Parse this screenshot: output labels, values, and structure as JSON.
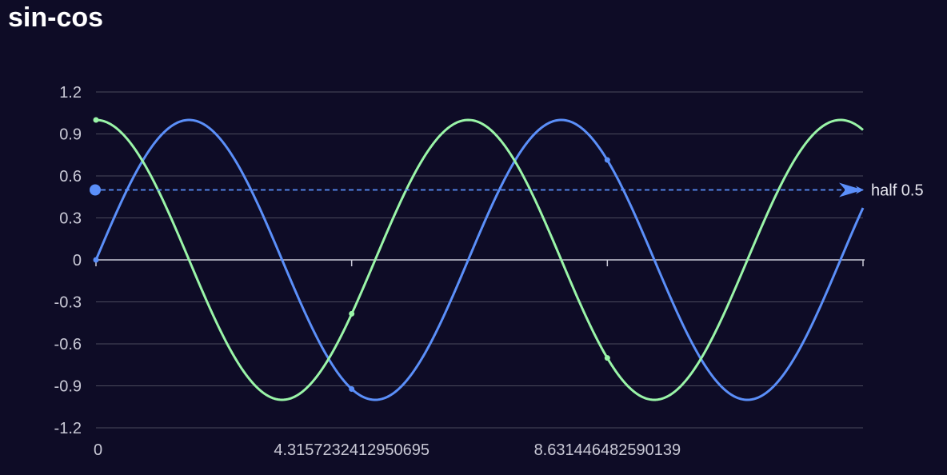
{
  "chart_data": {
    "type": "line",
    "title": "sin-cos",
    "xlabel": "",
    "ylabel": "",
    "xlim": [
      0,
      12.947
    ],
    "ylim": [
      -1.2,
      1.2
    ],
    "yticks": [
      "1.2",
      "0.9",
      "0.6",
      "0.3",
      "0",
      "-0.3",
      "-0.6",
      "-0.9",
      "-1.2"
    ],
    "xticks": [
      {
        "value": 0,
        "label": "0"
      },
      {
        "value": 4.3157232412950695,
        "label": "4.3157232412950695"
      },
      {
        "value": 8.631446482590139,
        "label": "8.631446482590139"
      }
    ],
    "grid": true,
    "colors": {
      "background": "#0e0c26",
      "grid": "#4a4a5c",
      "axis": "#c9c9d6",
      "sin": "#5b8ff9",
      "cos": "#9af5a8",
      "markline": "#5b8ff9"
    },
    "series": [
      {
        "color": "#5b8ff9",
        "function": "sin",
        "x": [
          0,
          0.5,
          1.0,
          1.571,
          2.0,
          2.5,
          3.0,
          3.142,
          3.5,
          4.0,
          4.316,
          4.712,
          5.0,
          5.5,
          6.0,
          6.283,
          6.5,
          7.0,
          7.5,
          7.854,
          8.0,
          8.5,
          8.631,
          9.0,
          9.425,
          9.5,
          10.0,
          10.5,
          10.996,
          11.0,
          11.5,
          12.0,
          12.5,
          12.566,
          12.947
        ],
        "values": [
          0,
          0.479,
          0.841,
          1.0,
          0.909,
          0.598,
          0.141,
          0.0,
          -0.351,
          -0.757,
          -0.923,
          -1.0,
          -0.959,
          -0.706,
          -0.279,
          0.0,
          0.215,
          0.657,
          0.938,
          1.0,
          0.989,
          0.798,
          0.714,
          0.412,
          0.0,
          -0.075,
          -0.544,
          -0.88,
          -1.0,
          -1.0,
          -0.875,
          -0.537,
          -0.066,
          0.0,
          0.359
        ],
        "markers": [
          {
            "x": 0,
            "y": 0
          },
          {
            "x": 4.3157232412950695,
            "y": -0.923
          },
          {
            "x": 8.631446482590139,
            "y": 0.714
          }
        ]
      },
      {
        "color": "#9af5a8",
        "function": "cos",
        "x": [
          0,
          0.5,
          1.0,
          1.571,
          2.0,
          2.5,
          3.0,
          3.142,
          3.5,
          4.0,
          4.316,
          4.712,
          5.0,
          5.5,
          6.0,
          6.283,
          6.5,
          7.0,
          7.5,
          7.854,
          8.0,
          8.5,
          8.631,
          9.0,
          9.425,
          9.5,
          10.0,
          10.5,
          10.996,
          11.0,
          11.5,
          12.0,
          12.5,
          12.566,
          12.947
        ],
        "values": [
          1.0,
          0.878,
          0.54,
          0.0,
          -0.416,
          -0.801,
          -0.99,
          -1.0,
          -0.936,
          -0.654,
          -0.385,
          0.0,
          0.284,
          0.709,
          0.96,
          1.0,
          0.977,
          0.754,
          0.347,
          0.0,
          -0.146,
          -0.602,
          -0.701,
          -0.911,
          -1.0,
          -0.997,
          -0.839,
          -0.476,
          0.0,
          0.004,
          0.485,
          0.844,
          0.998,
          1.0,
          0.934
        ],
        "markers": [
          {
            "x": 0,
            "y": 1.0
          },
          {
            "x": 4.3157232412950695,
            "y": -0.385
          },
          {
            "x": 8.631446482590139,
            "y": -0.701
          }
        ]
      }
    ],
    "markline": {
      "value": 0.5,
      "label": "half 0.5",
      "style": "dashed"
    }
  }
}
